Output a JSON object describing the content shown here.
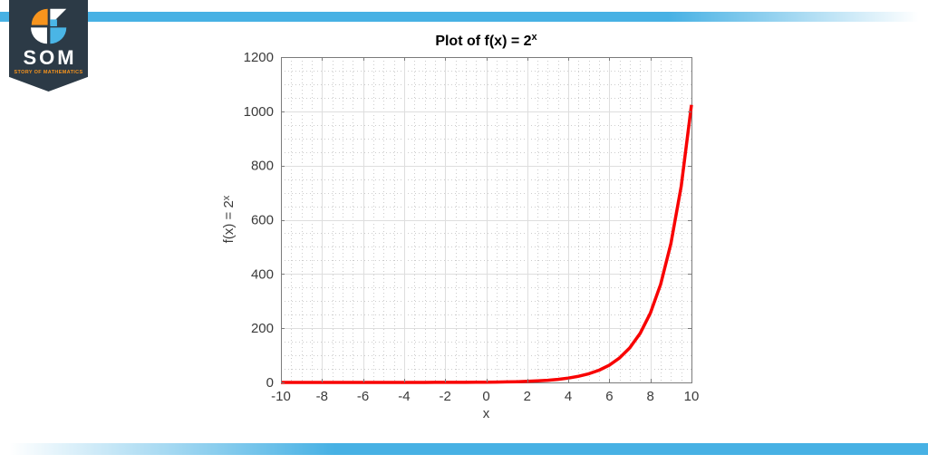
{
  "branding": {
    "name": "SOM",
    "subtitle": "STORY OF MATHEMATICS",
    "banner_color": "#2c3a46",
    "accent_orange": "#f7941d",
    "accent_blue": "#4ab5e6"
  },
  "decor": {
    "bar_color": "#47b1e4"
  },
  "chart_data": {
    "type": "line",
    "title_main": "Plot of f(x) = 2",
    "title_sup": "x",
    "xlabel": "x",
    "ylabel_main": "f(x) = 2",
    "ylabel_sup": "x",
    "xlim": [
      -10,
      10
    ],
    "ylim": [
      0,
      1200
    ],
    "x_ticks": [
      -10,
      -8,
      -6,
      -4,
      -2,
      0,
      2,
      4,
      6,
      8,
      10
    ],
    "y_ticks": [
      0,
      200,
      400,
      600,
      800,
      1000,
      1200
    ],
    "grid": "major solid + minor dotted",
    "minor_per_major": 4,
    "legend": "none",
    "axis_color": "#7b7b7b",
    "major_grid_color": "#dedede",
    "minor_grid_color": "#cccccc",
    "tick_label_color": "#3a3a3a",
    "series": [
      {
        "name": "f(x) = 2^x",
        "color": "#f80202",
        "line_width": 3.5,
        "points": [
          [
            -10,
            0.001
          ],
          [
            -9.5,
            0.0014
          ],
          [
            -9,
            0.002
          ],
          [
            -8.5,
            0.0028
          ],
          [
            -8,
            0.0039
          ],
          [
            -7.5,
            0.0055
          ],
          [
            -7,
            0.0078
          ],
          [
            -6.5,
            0.011
          ],
          [
            -6,
            0.0156
          ],
          [
            -5.5,
            0.0221
          ],
          [
            -5,
            0.0313
          ],
          [
            -4.5,
            0.0442
          ],
          [
            -4,
            0.0625
          ],
          [
            -3.5,
            0.0884
          ],
          [
            -3,
            0.125
          ],
          [
            -2.5,
            0.1768
          ],
          [
            -2,
            0.25
          ],
          [
            -1.5,
            0.3536
          ],
          [
            -1,
            0.5
          ],
          [
            -0.5,
            0.7071
          ],
          [
            0,
            1
          ],
          [
            0.5,
            1.4142
          ],
          [
            1,
            2
          ],
          [
            1.5,
            2.8284
          ],
          [
            2,
            4
          ],
          [
            2.5,
            5.6569
          ],
          [
            3,
            8
          ],
          [
            3.5,
            11.3137
          ],
          [
            4,
            16
          ],
          [
            4.5,
            22.6274
          ],
          [
            5,
            32
          ],
          [
            5.5,
            45.2548
          ],
          [
            6,
            64
          ],
          [
            6.5,
            90.5097
          ],
          [
            7,
            128
          ],
          [
            7.5,
            181.0193
          ],
          [
            8,
            256
          ],
          [
            8.5,
            362.0387
          ],
          [
            9,
            512
          ],
          [
            9.5,
            724.0773
          ],
          [
            10,
            1024
          ]
        ]
      }
    ]
  }
}
